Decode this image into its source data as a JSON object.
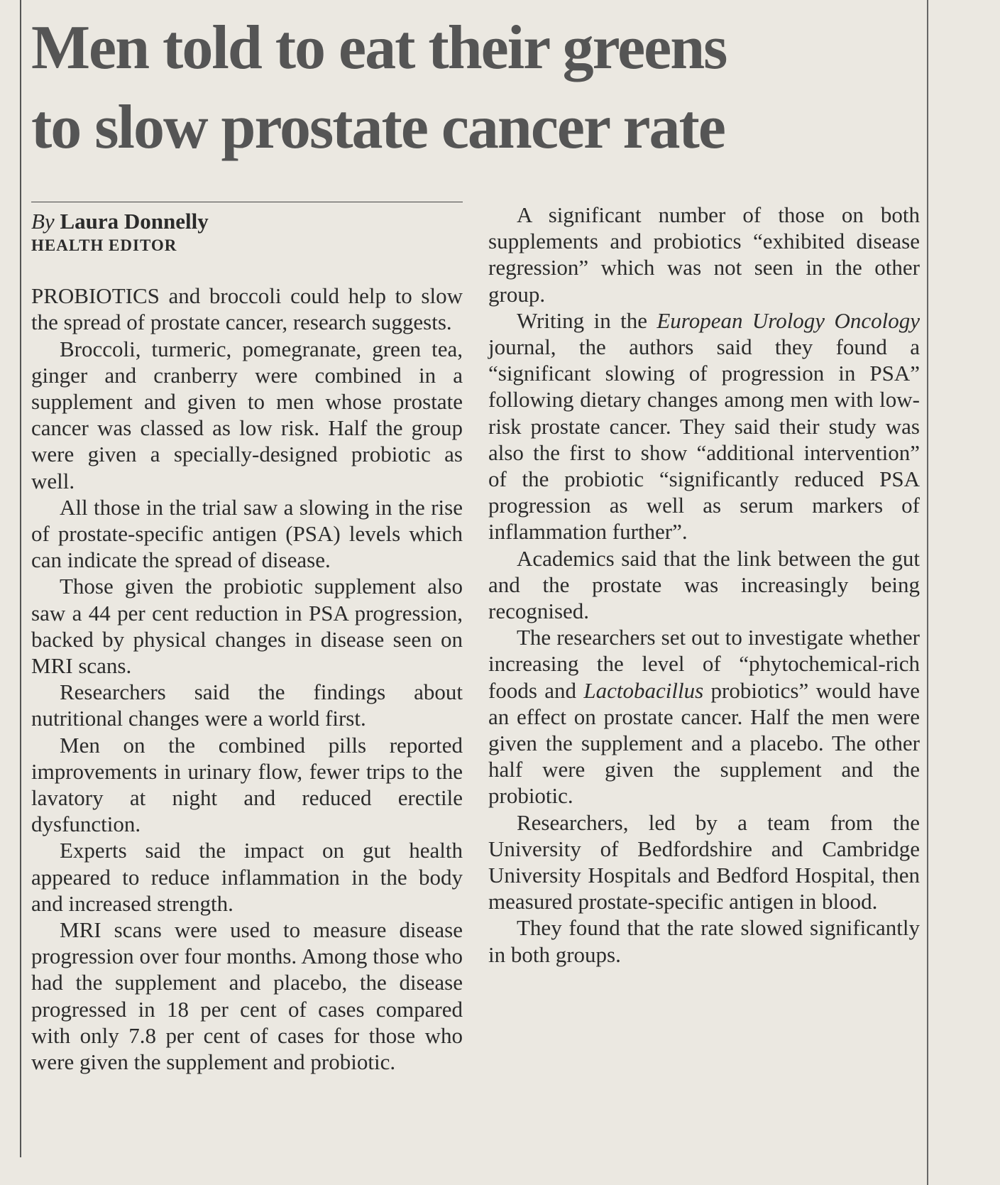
{
  "headline": [
    "Men told to eat their greens",
    "to slow prostate cancer rate"
  ],
  "byline": {
    "by": "By",
    "name": "Laura Donnelly",
    "role": "HEALTH EDITOR"
  },
  "paragraphs": [
    "PROBIOTICS and broccoli could help to slow the spread of prostate cancer, research suggests.",
    "Broccoli, turmeric, pomegranate, green tea, ginger and cranberry were combined in a supplement and given to men whose prostate cancer was classed as low risk. Half the group were given a specially-designed probiotic as well.",
    "All those in the trial saw a slowing in the rise of prostate-specific antigen (PSA) levels which can indicate the spread of disease.",
    "Those given the probiotic supplement also saw a 44 per cent reduction in PSA progression, backed by physical changes in disease seen on MRI scans.",
    "Researchers said the findings about nutritional changes were a world first.",
    "Men on the combined pills reported improvements in urinary flow, fewer trips to the lavatory at night and reduced erectile dysfunction.",
    "Experts said the impact on gut health appeared to reduce inflammation in the body and increased strength.",
    "MRI scans were used to measure disease progression over four months. Among those who had the supplement and placebo, the disease progressed in 18 per cent of cases compared with only 7.8 per cent of cases for those who were given the supplement and probiotic.",
    "A significant number of those on both supplements and probiotics “exhibited disease regression” which was not seen in the other group.",
    [
      "Writing in the ",
      "European Urology Oncology",
      " journal, the authors said they found a “significant slowing of progression in PSA” following dietary changes among men with low-risk prostate cancer. They said their study was also the first to show “additional intervention” of the probiotic “significantly reduced PSA progression as well as serum markers of inflammation further”."
    ],
    "Academics said that the link between the gut and the prostate was increasingly being recognised.",
    [
      "The researchers set out to investigate whether increasing the level of “phytochemical-rich foods and ",
      "Lactobacillus",
      " probiotics” would have an effect on prostate cancer. Half the men were given the supplement and a placebo. The other half were given the supplement and the probiotic."
    ],
    "Researchers, led by a team from the University of Bedfordshire and Cambridge University Hospitals and Bedford Hospital, then measured prostate-specific antigen in blood.",
    "They found that the rate slowed significantly in both groups."
  ]
}
